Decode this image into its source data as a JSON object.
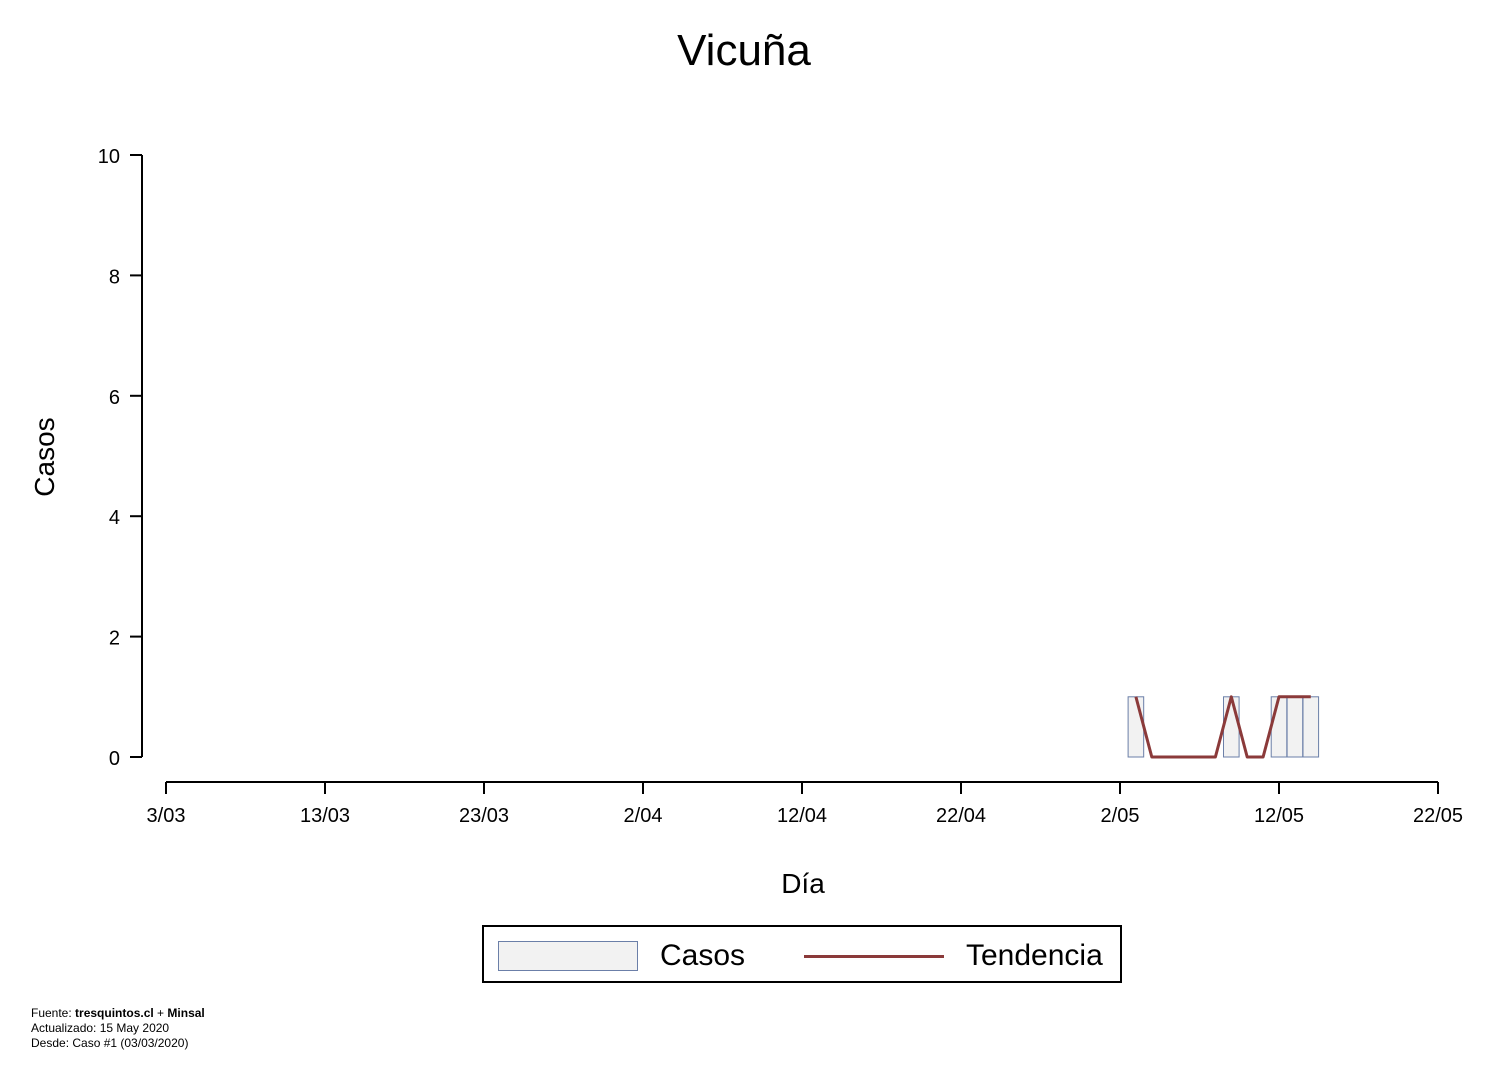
{
  "chart_data": {
    "type": "bar",
    "title": "Vicuña",
    "xlabel": "Día",
    "ylabel": "Casos",
    "ylim": [
      0,
      10
    ],
    "yticks": [
      0,
      2,
      4,
      6,
      8,
      10
    ],
    "xticks": [
      "3/03",
      "13/03",
      "23/03",
      "2/04",
      "12/04",
      "22/04",
      "2/05",
      "12/05",
      "22/05"
    ],
    "x_range_days": [
      0,
      80
    ],
    "series": [
      {
        "name": "Casos",
        "kind": "bar",
        "points": [
          {
            "date": "3/05",
            "value": 1
          },
          {
            "date": "9/05",
            "value": 1
          },
          {
            "date": "12/05",
            "value": 1
          },
          {
            "date": "13/05",
            "value": 1
          },
          {
            "date": "14/05",
            "value": 1
          }
        ]
      },
      {
        "name": "Tendencia",
        "kind": "line",
        "points": [
          {
            "date": "3/05",
            "value": 1
          },
          {
            "date": "4/05",
            "value": 0
          },
          {
            "date": "5/05",
            "value": 0
          },
          {
            "date": "6/05",
            "value": 0
          },
          {
            "date": "7/05",
            "value": 0
          },
          {
            "date": "8/05",
            "value": 0
          },
          {
            "date": "9/05",
            "value": 1
          },
          {
            "date": "10/05",
            "value": 0
          },
          {
            "date": "11/05",
            "value": 0
          },
          {
            "date": "12/05",
            "value": 1
          },
          {
            "date": "13/05",
            "value": 1
          },
          {
            "date": "14/05",
            "value": 1
          }
        ]
      }
    ],
    "legend_position": "bottom-center",
    "colors": {
      "bar_fill": "#f2f2f2",
      "bar_stroke": "#6b7fa8",
      "trend": "#8b3a3a"
    }
  },
  "footer": {
    "fuente_label": "Fuente: ",
    "fuente_a": "tresquintos.cl",
    "fuente_sep": " + ",
    "fuente_b": "Minsal",
    "actualizado": "Actualizado: 15 May 2020",
    "desde": "Desde: Caso #1  (03/03/2020)"
  }
}
